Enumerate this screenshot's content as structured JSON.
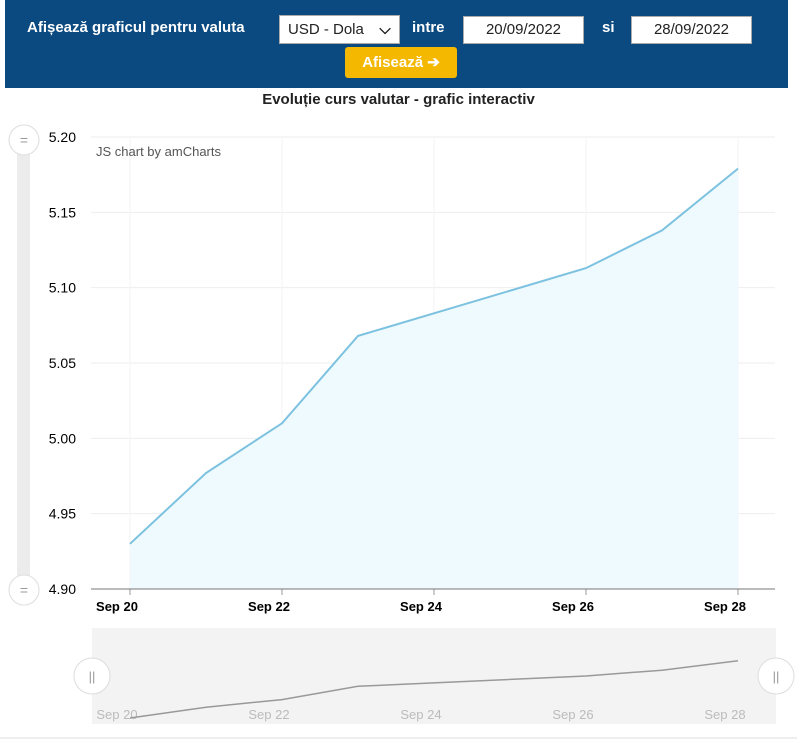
{
  "header": {
    "prompt_label": "Afișează graficul pentru valuta",
    "currency_value": "USD - Dola",
    "between_label": "intre",
    "date_from": "20/09/2022",
    "and_label": "si",
    "date_to": "28/09/2022",
    "show_button_label": "Afisează ➔"
  },
  "colors": {
    "header_bg": "#0a4a80",
    "button_bg": "#f5b800",
    "line": "#7cc2e0",
    "fill": "#eefafd",
    "scrollbar_line": "#999999"
  },
  "credit": "JS chart by amCharts",
  "chart_data": {
    "type": "area",
    "title": "Evoluție curs valutar - grafic interactiv",
    "x": [
      "2022-09-20",
      "2022-09-21",
      "2022-09-22",
      "2022-09-23",
      "2022-09-26",
      "2022-09-27",
      "2022-09-28"
    ],
    "values": [
      4.93,
      4.977,
      5.01,
      5.068,
      5.113,
      5.138,
      5.179
    ],
    "x_tick_labels": [
      "Sep 20",
      "Sep 22",
      "Sep 24",
      "Sep 26",
      "Sep 28"
    ],
    "y_tick_labels": [
      "5.20",
      "5.15",
      "5.10",
      "5.05",
      "5.00",
      "4.95",
      "4.90"
    ],
    "ylim": [
      4.9,
      5.2
    ],
    "xlim": [
      "2022-09-20",
      "2022-09-28"
    ],
    "grid": true,
    "legend": "none",
    "has_scrollbar_preview": true
  }
}
